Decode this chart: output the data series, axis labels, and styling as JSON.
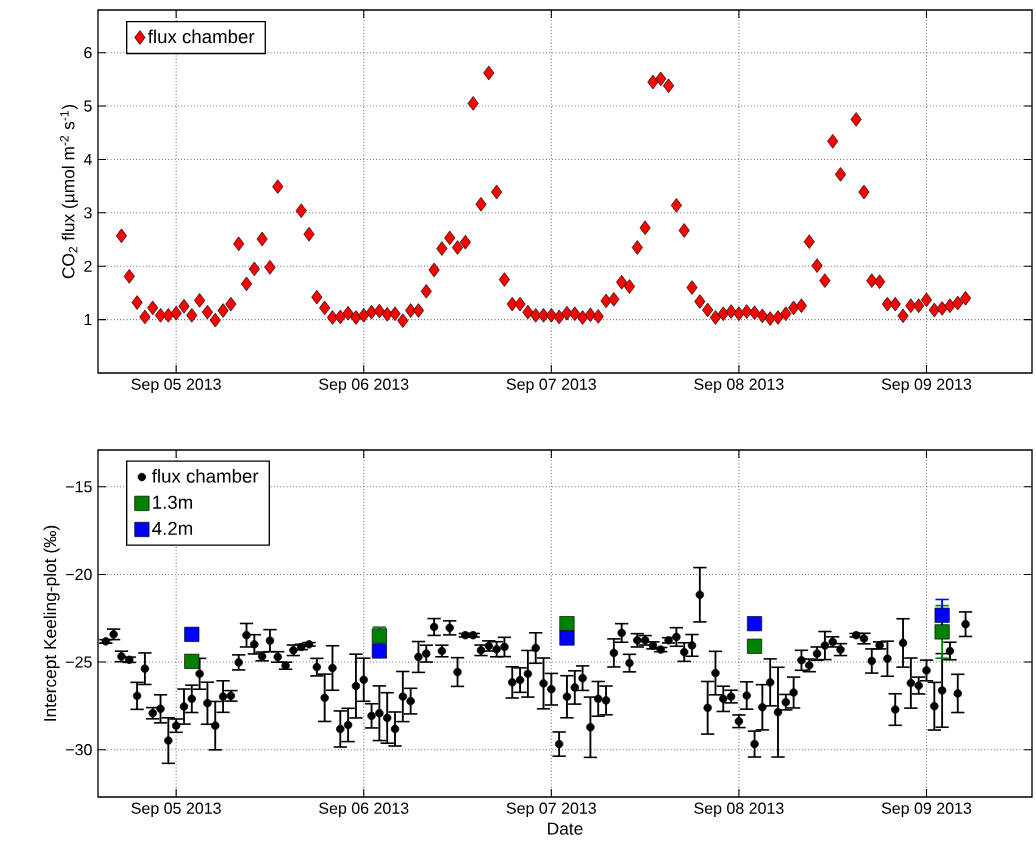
{
  "chart_data": [
    {
      "type": "scatter",
      "ylabel": "CO$_{2}$ flux (µmol m$^{-2}$ s$^{-1}$)",
      "xlim": [
        "2013-09-04T14:00",
        "2013-09-09T13:30"
      ],
      "xticks": [
        {
          "value": "2013-09-05",
          "label": "Sep 05 2013"
        },
        {
          "value": "2013-09-06",
          "label": "Sep 06 2013"
        },
        {
          "value": "2013-09-07",
          "label": "Sep 07 2013"
        },
        {
          "value": "2013-09-08",
          "label": "Sep 08 2013"
        },
        {
          "value": "2013-09-09",
          "label": "Sep 09 2013"
        }
      ],
      "ylim": [
        0,
        6.8
      ],
      "yticks": [
        1,
        2,
        3,
        4,
        5,
        6
      ],
      "grid": true,
      "legend": "top left",
      "series": [
        {
          "name": "flux chamber",
          "color": "#ff0000",
          "marker": "diamond",
          "x": [
            "2013-09-04T17:00",
            "2013-09-04T18:00",
            "2013-09-04T19:00",
            "2013-09-04T20:00",
            "2013-09-04T21:00",
            "2013-09-04T22:00",
            "2013-09-04T23:00",
            "2013-09-05T00:00",
            "2013-09-05T01:00",
            "2013-09-05T02:00",
            "2013-09-05T03:00",
            "2013-09-05T04:00",
            "2013-09-05T05:00",
            "2013-09-05T06:00",
            "2013-09-05T07:00",
            "2013-09-05T08:00",
            "2013-09-05T09:00",
            "2013-09-05T10:00",
            "2013-09-05T11:00",
            "2013-09-05T12:00",
            "2013-09-05T13:00",
            "2013-09-05T16:00",
            "2013-09-05T17:00",
            "2013-09-05T18:00",
            "2013-09-05T19:00",
            "2013-09-05T20:00",
            "2013-09-05T21:00",
            "2013-09-05T22:00",
            "2013-09-05T23:00",
            "2013-09-06T00:00",
            "2013-09-06T01:00",
            "2013-09-06T02:00",
            "2013-09-06T03:00",
            "2013-09-06T04:00",
            "2013-09-06T05:00",
            "2013-09-06T06:00",
            "2013-09-06T07:00",
            "2013-09-06T08:00",
            "2013-09-06T09:00",
            "2013-09-06T10:00",
            "2013-09-06T11:00",
            "2013-09-06T12:00",
            "2013-09-06T13:00",
            "2013-09-06T14:00",
            "2013-09-06T15:00",
            "2013-09-06T16:00",
            "2013-09-06T17:00",
            "2013-09-06T18:00",
            "2013-09-06T19:00",
            "2013-09-06T20:00",
            "2013-09-06T21:00",
            "2013-09-06T22:00",
            "2013-09-06T23:00",
            "2013-09-07T00:00",
            "2013-09-07T01:00",
            "2013-09-07T02:00",
            "2013-09-07T03:00",
            "2013-09-07T04:00",
            "2013-09-07T05:00",
            "2013-09-07T06:00",
            "2013-09-07T07:00",
            "2013-09-07T08:00",
            "2013-09-07T09:00",
            "2013-09-07T10:00",
            "2013-09-07T11:00",
            "2013-09-07T12:00",
            "2013-09-07T13:00",
            "2013-09-07T14:00",
            "2013-09-07T15:00",
            "2013-09-07T16:00",
            "2013-09-07T17:00",
            "2013-09-07T18:00",
            "2013-09-07T19:00",
            "2013-09-07T20:00",
            "2013-09-07T21:00",
            "2013-09-07T22:00",
            "2013-09-07T23:00",
            "2013-09-08T00:00",
            "2013-09-08T01:00",
            "2013-09-08T02:00",
            "2013-09-08T03:00",
            "2013-09-08T04:00",
            "2013-09-08T05:00",
            "2013-09-08T06:00",
            "2013-09-08T07:00",
            "2013-09-08T08:00",
            "2013-09-08T09:00",
            "2013-09-08T10:00",
            "2013-09-08T11:00",
            "2013-09-08T12:00",
            "2013-09-08T13:00",
            "2013-09-08T15:00",
            "2013-09-08T16:00",
            "2013-09-08T17:00",
            "2013-09-08T18:00",
            "2013-09-08T19:00",
            "2013-09-08T20:00",
            "2013-09-08T21:00",
            "2013-09-08T22:00",
            "2013-09-08T23:00",
            "2013-09-09T00:00",
            "2013-09-09T01:00",
            "2013-09-09T02:00",
            "2013-09-09T03:00",
            "2013-09-09T04:00",
            "2013-09-09T05:00"
          ],
          "values": [
            2.57,
            1.81,
            1.32,
            1.05,
            1.22,
            1.08,
            1.08,
            1.12,
            1.25,
            1.08,
            1.36,
            1.14,
            0.99,
            1.17,
            1.29,
            2.42,
            1.67,
            1.95,
            2.51,
            1.98,
            3.49,
            3.04,
            2.6,
            1.42,
            1.22,
            1.04,
            1.05,
            1.12,
            1.04,
            1.08,
            1.14,
            1.16,
            1.1,
            1.11,
            0.98,
            1.17,
            1.17,
            1.53,
            1.93,
            2.33,
            2.53,
            2.35,
            2.45,
            5.05,
            3.16,
            5.62,
            3.39,
            1.75,
            1.29,
            1.29,
            1.14,
            1.08,
            1.08,
            1.08,
            1.05,
            1.12,
            1.11,
            1.04,
            1.09,
            1.06,
            1.35,
            1.38,
            1.7,
            1.62,
            2.35,
            2.72,
            5.45,
            5.51,
            5.38,
            3.14,
            2.67,
            1.6,
            1.34,
            1.18,
            1.04,
            1.11,
            1.15,
            1.11,
            1.15,
            1.13,
            1.07,
            1.02,
            1.04,
            1.11,
            1.22,
            1.26,
            2.46,
            2.01,
            1.73,
            4.34,
            3.72,
            4.75,
            3.39,
            1.73,
            1.71,
            1.29,
            1.29,
            1.07,
            1.26,
            1.26,
            1.37,
            1.18,
            1.21,
            1.26,
            1.31,
            1.4
          ]
        }
      ]
    },
    {
      "type": "scatter",
      "xlabel": "Date",
      "ylabel": "Intercept Keeling-plot (‰)",
      "xlim": [
        "2013-09-04T14:00",
        "2013-09-09T13:30"
      ],
      "xticks": [
        {
          "value": "2013-09-05",
          "label": "Sep 05 2013"
        },
        {
          "value": "2013-09-06",
          "label": "Sep 06 2013"
        },
        {
          "value": "2013-09-07",
          "label": "Sep 07 2013"
        },
        {
          "value": "2013-09-08",
          "label": "Sep 08 2013"
        },
        {
          "value": "2013-09-09",
          "label": "Sep 09 2013"
        }
      ],
      "ylim": [
        -32.7,
        -12.9
      ],
      "yticks": [
        {
          "value": -30,
          "label": "−30"
        },
        {
          "value": -25,
          "label": "−25"
        },
        {
          "value": -20,
          "label": "−20"
        },
        {
          "value": -15,
          "label": "−15"
        }
      ],
      "grid": true,
      "legend": "top left",
      "series": [
        {
          "name": "flux chamber",
          "color": "#000000",
          "marker": "circle",
          "x": [
            "2013-09-04T15:00",
            "2013-09-04T16:00",
            "2013-09-04T17:00",
            "2013-09-04T18:00",
            "2013-09-04T19:00",
            "2013-09-04T20:00",
            "2013-09-04T21:00",
            "2013-09-04T22:00",
            "2013-09-04T23:00",
            "2013-09-05T00:00",
            "2013-09-05T01:00",
            "2013-09-05T02:00",
            "2013-09-05T03:00",
            "2013-09-05T04:00",
            "2013-09-05T05:00",
            "2013-09-05T06:00",
            "2013-09-05T07:00",
            "2013-09-05T08:00",
            "2013-09-05T09:00",
            "2013-09-05T10:00",
            "2013-09-05T11:00",
            "2013-09-05T12:00",
            "2013-09-05T13:00",
            "2013-09-05T14:00",
            "2013-09-05T15:00",
            "2013-09-05T16:00",
            "2013-09-05T17:00",
            "2013-09-05T18:00",
            "2013-09-05T19:00",
            "2013-09-05T20:00",
            "2013-09-05T21:00",
            "2013-09-05T22:00",
            "2013-09-05T23:00",
            "2013-09-06T00:00",
            "2013-09-06T01:00",
            "2013-09-06T02:00",
            "2013-09-06T03:00",
            "2013-09-06T04:00",
            "2013-09-06T05:00",
            "2013-09-06T06:00",
            "2013-09-06T07:00",
            "2013-09-06T08:00",
            "2013-09-06T09:00",
            "2013-09-06T10:00",
            "2013-09-06T11:00",
            "2013-09-06T12:00",
            "2013-09-06T13:00",
            "2013-09-06T14:00",
            "2013-09-06T15:00",
            "2013-09-06T16:00",
            "2013-09-06T17:00",
            "2013-09-06T18:00",
            "2013-09-06T19:00",
            "2013-09-06T20:00",
            "2013-09-06T21:00",
            "2013-09-06T22:00",
            "2013-09-06T23:00",
            "2013-09-07T00:00",
            "2013-09-07T01:00",
            "2013-09-07T02:00",
            "2013-09-07T03:00",
            "2013-09-07T04:00",
            "2013-09-07T05:00",
            "2013-09-07T06:00",
            "2013-09-07T07:00",
            "2013-09-07T08:00",
            "2013-09-07T09:00",
            "2013-09-07T10:00",
            "2013-09-07T11:00",
            "2013-09-07T12:00",
            "2013-09-07T13:00",
            "2013-09-07T14:00",
            "2013-09-07T15:00",
            "2013-09-07T16:00",
            "2013-09-07T17:00",
            "2013-09-07T18:00",
            "2013-09-07T19:00",
            "2013-09-07T20:00",
            "2013-09-07T21:00",
            "2013-09-07T22:00",
            "2013-09-07T23:00",
            "2013-09-08T00:00",
            "2013-09-08T01:00",
            "2013-09-08T02:00",
            "2013-09-08T03:00",
            "2013-09-08T04:00",
            "2013-09-08T05:00",
            "2013-09-08T06:00",
            "2013-09-08T07:00",
            "2013-09-08T08:00",
            "2013-09-08T09:00",
            "2013-09-08T10:00",
            "2013-09-08T11:00",
            "2013-09-08T12:00",
            "2013-09-08T13:00",
            "2013-09-08T15:00",
            "2013-09-08T16:00",
            "2013-09-08T17:00",
            "2013-09-08T18:00",
            "2013-09-08T19:00",
            "2013-09-08T20:00",
            "2013-09-08T21:00",
            "2013-09-08T22:00",
            "2013-09-08T23:00",
            "2013-09-09T00:00",
            "2013-09-09T01:00",
            "2013-09-09T02:00",
            "2013-09-09T03:00",
            "2013-09-09T04:00",
            "2013-09-09T05:00"
          ],
          "values": [
            -23.82,
            -23.42,
            -24.68,
            -24.87,
            -26.93,
            -25.38,
            -27.92,
            -27.67,
            -29.48,
            -28.63,
            -27.54,
            -27.1,
            -25.67,
            -27.35,
            -28.63,
            -26.97,
            -26.93,
            -25.02,
            -23.47,
            -23.99,
            -24.68,
            -23.78,
            -24.71,
            -25.21,
            -24.33,
            -24.14,
            -23.99,
            -25.29,
            -27.04,
            -25.34,
            -28.82,
            -28.59,
            -26.37,
            -26.01,
            -28.07,
            -27.92,
            -28.19,
            -28.82,
            -26.97,
            -27.23,
            -24.71,
            -24.52,
            -23.0,
            -24.37,
            -23.05,
            -25.57,
            -23.47,
            -23.47,
            -24.33,
            -24.08,
            -24.27,
            -24.14,
            -26.16,
            -26.03,
            -25.67,
            -24.2,
            -26.22,
            -26.55,
            -29.68,
            -26.98,
            -26.45,
            -25.92,
            -28.72,
            -27.1,
            -27.19,
            -24.48,
            -23.34,
            -25.06,
            -23.76,
            -23.76,
            -24.05,
            -24.29,
            -23.76,
            -23.57,
            -24.43,
            -24.05,
            -21.16,
            -27.61,
            -25.63,
            -27.1,
            -26.97,
            -28.38,
            -26.91,
            -29.68,
            -27.58,
            -26.16,
            -27.86,
            -27.29,
            -26.74,
            -24.9,
            -25.19,
            -24.52,
            -24.06,
            -23.85,
            -24.29,
            -23.47,
            -23.66,
            -24.94,
            -24.05,
            -24.81,
            -27.71,
            -23.91,
            -26.2,
            -26.34,
            -25.48,
            -27.52,
            -26.62,
            -24.37,
            -26.79,
            -22.84
          ],
          "errors": [
            0.1,
            0.3,
            0.3,
            0.15,
            0.77,
            0.9,
            0.32,
            0.8,
            1.3,
            0.38,
            1.0,
            0.78,
            0.88,
            1.2,
            1.38,
            0.9,
            0.3,
            0.43,
            0.67,
            0.55,
            0.25,
            0.63,
            0.3,
            0.2,
            0.3,
            0.15,
            0.1,
            0.5,
            1.35,
            1.27,
            1.03,
            0.95,
            1.82,
            1.23,
            0.69,
            1.56,
            1.44,
            0.97,
            1.43,
            0.73,
            0.88,
            0.48,
            0.48,
            0.33,
            0.4,
            0.82,
            0.1,
            0.1,
            0.3,
            0.29,
            0.43,
            0.55,
            0.89,
            0.7,
            1.33,
            0.87,
            1.45,
            0.9,
            0.69,
            1.2,
            0.95,
            0.7,
            1.72,
            0.99,
            0.82,
            0.8,
            0.53,
            0.5,
            0.38,
            0.27,
            0.2,
            0.12,
            0.15,
            0.53,
            0.53,
            0.62,
            1.55,
            1.5,
            1.24,
            0.72,
            0.36,
            0.36,
            0.78,
            0.74,
            1.29,
            1.34,
            2.56,
            0.44,
            0.88,
            0.57,
            0.36,
            0.38,
            0.8,
            0.29,
            0.34,
            0.1,
            0.3,
            0.69,
            0.2,
            1.0,
            0.9,
            1.38,
            1.43,
            0.48,
            0.59,
            1.36,
            2.1,
            0.5,
            1.09,
            0.7
          ]
        },
        {
          "name": "1.3m",
          "color": "#008000",
          "marker": "square",
          "x": [
            "2013-09-05T02:00",
            "2013-09-06T02:00",
            "2013-09-07T02:00",
            "2013-09-08T02:00",
            "2013-09-09T02:00"
          ],
          "values": [
            -24.96,
            -23.51,
            -22.81,
            -24.1,
            -23.28
          ],
          "errors": [
            null,
            0.5,
            null,
            null,
            1.5
          ]
        },
        {
          "name": "4.2m",
          "color": "#0000ff",
          "marker": "square",
          "x": [
            "2013-09-05T02:00",
            "2013-09-06T02:00",
            "2013-09-07T02:00",
            "2013-09-08T02:00",
            "2013-09-09T02:00"
          ],
          "values": [
            -23.42,
            -24.37,
            -23.63,
            -22.81,
            -22.33
          ],
          "errors": [
            null,
            null,
            null,
            null,
            0.9
          ]
        }
      ]
    }
  ]
}
